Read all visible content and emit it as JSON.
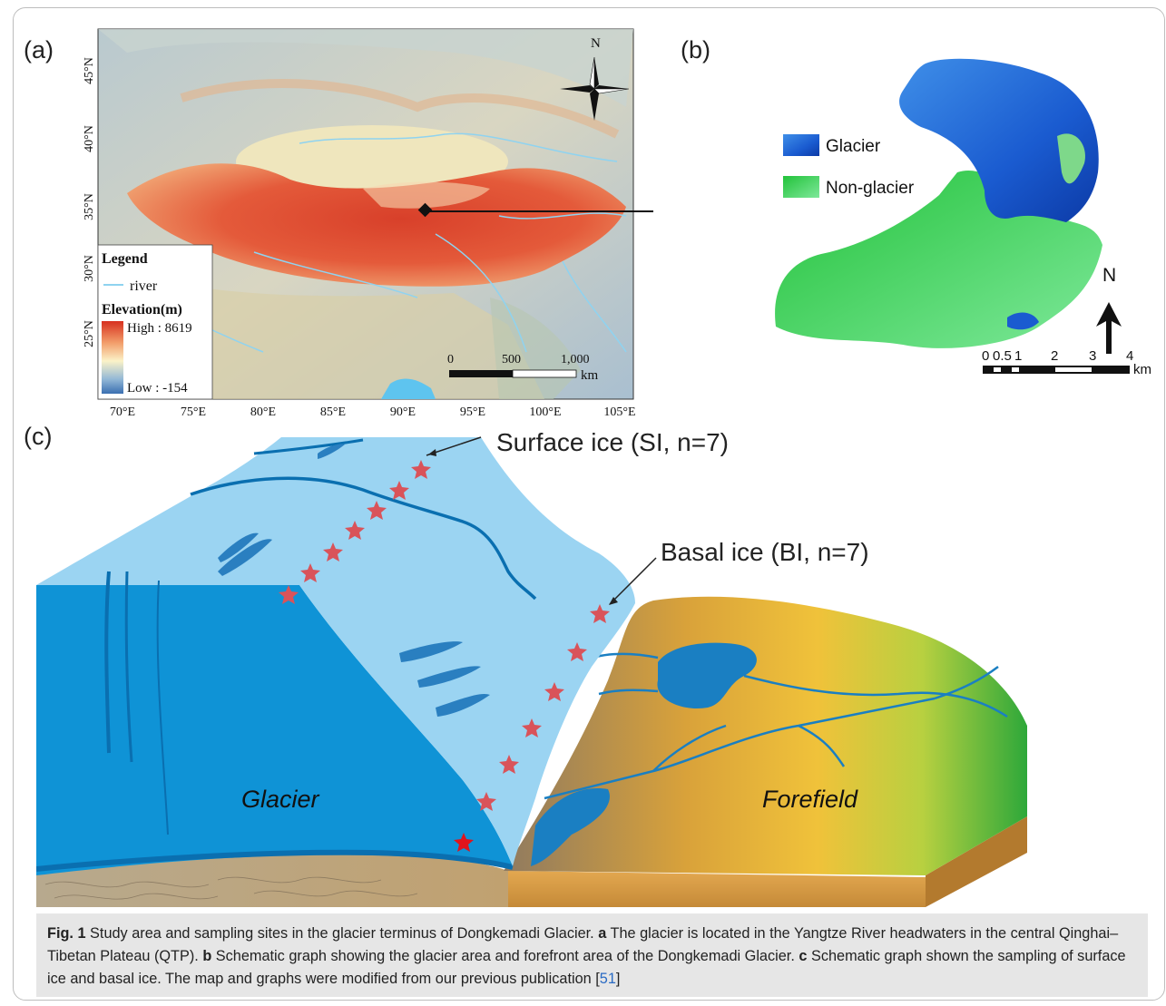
{
  "panels": {
    "a": {
      "label": "(a)",
      "north": "N",
      "lat_ticks": [
        "45°N",
        "40°N",
        "35°N",
        "30°N",
        "25°N"
      ],
      "lon_ticks": [
        "70°E",
        "75°E",
        "80°E",
        "85°E",
        "90°E",
        "95°E",
        "100°E",
        "105°E"
      ],
      "legend": {
        "title": "Legend",
        "river": "river",
        "elev_title": "Elevation(m)",
        "high": "High : 8619",
        "low": "Low : -154"
      },
      "scale": {
        "t0": "0",
        "t1": "500",
        "t2": "1,000",
        "unit": "km"
      }
    },
    "b": {
      "label": "(b)",
      "legend": {
        "glacier": "Glacier",
        "non_glacier": "Non-glacier"
      },
      "north": "N",
      "scale": [
        "0",
        "0.5",
        "1",
        "2",
        "3",
        "4"
      ],
      "unit": "km"
    },
    "c": {
      "label": "(c)",
      "surface_label": "Surface ice (SI, n=7)",
      "basal_label": "Basal ice (BI, n=7)",
      "glacier": "Glacier",
      "forefield": "Forefield"
    }
  },
  "caption": {
    "fig": "Fig. 1",
    "t0": "  Study area and sampling sites in the glacier terminus of Dongkemadi Glacier. ",
    "a": "a",
    "t1": " The glacier is located in the Yangtze River headwaters in the central Qinghai–Tibetan Plateau (QTP). ",
    "b": "b",
    "t2": " Schematic graph showing the glacier area and forefront area of the Dongkemadi Glacier. ",
    "c": "c",
    "t3": " Schematic graph shown the sampling of surface ice and basal ice. The map and graphs were modified from our previous publication [",
    "ref": "51",
    "t4": "]"
  }
}
